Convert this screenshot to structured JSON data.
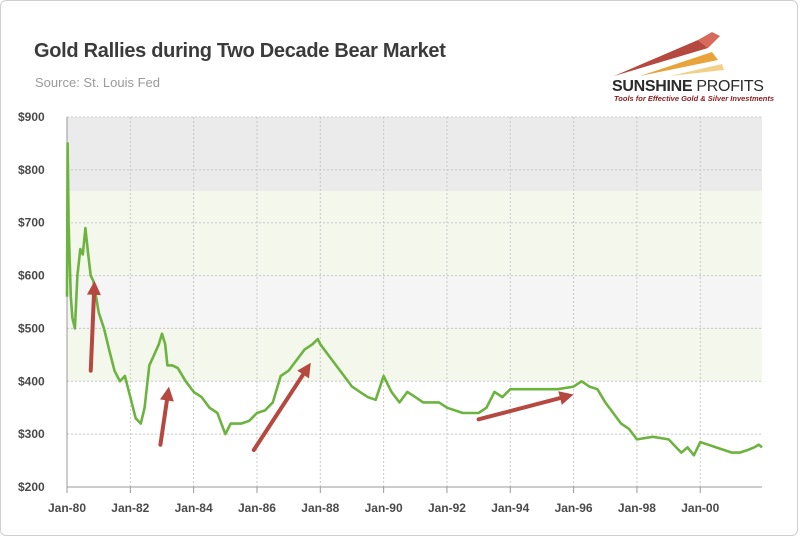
{
  "header": {
    "title": "Gold Rallies during Two Decade Bear Market",
    "source": "Source: St. Louis Fed"
  },
  "logo": {
    "name_bold": "SUNSHINE",
    "name_light": " PROFITS",
    "tagline": "Tools for Effective Gold & Silver Investments"
  },
  "colors": {
    "line": "#6db33f",
    "arrow": "#b5483f",
    "band_top": "#ebebeb",
    "band_green": "#f3f7ec",
    "band_light": "#f5f5f5",
    "grid": "#c8c8c8"
  },
  "chart_data": {
    "type": "line",
    "title": "Gold Rallies during Two Decade Bear Market",
    "xlabel": "",
    "ylabel": "",
    "ylim": [
      200,
      900
    ],
    "xlim": [
      "1980-01",
      "2001-12"
    ],
    "y_ticks": [
      "$900",
      "$800",
      "$700",
      "$600",
      "$500",
      "$400",
      "$300",
      "$200"
    ],
    "y_tick_values": [
      900,
      800,
      700,
      600,
      500,
      400,
      300,
      200
    ],
    "x_ticks": [
      "Jan-80",
      "Jan-82",
      "Jan-84",
      "Jan-86",
      "Jan-88",
      "Jan-90",
      "Jan-92",
      "Jan-94",
      "Jan-96",
      "Jan-98",
      "Jan-00"
    ],
    "x_tick_years": [
      1980,
      1982,
      1984,
      1986,
      1988,
      1990,
      1992,
      1994,
      1996,
      1998,
      2000
    ],
    "grid": true,
    "series": [
      {
        "x": [
          1980.0,
          1980.02,
          1980.05,
          1980.08,
          1980.12,
          1980.17,
          1980.25,
          1980.33,
          1980.42,
          1980.5,
          1980.58,
          1980.67,
          1980.75,
          1980.83,
          1980.92,
          1981.0,
          1981.17,
          1981.33,
          1981.5,
          1981.67,
          1981.83,
          1982.0,
          1982.17,
          1982.33,
          1982.45,
          1982.6,
          1982.75,
          1982.9,
          1983.0,
          1983.1,
          1983.17,
          1983.33,
          1983.5,
          1983.75,
          1984.0,
          1984.25,
          1984.5,
          1984.75,
          1985.0,
          1985.17,
          1985.5,
          1985.75,
          1986.0,
          1986.25,
          1986.5,
          1986.75,
          1987.0,
          1987.25,
          1987.5,
          1987.75,
          1987.92,
          1988.0,
          1988.25,
          1988.5,
          1988.75,
          1989.0,
          1989.25,
          1989.5,
          1989.75,
          1990.0,
          1990.25,
          1990.5,
          1990.75,
          1991.0,
          1991.25,
          1991.5,
          1991.75,
          1992.0,
          1992.5,
          1993.0,
          1993.25,
          1993.5,
          1993.75,
          1994.0,
          1994.5,
          1995.0,
          1995.5,
          1996.0,
          1996.25,
          1996.5,
          1996.75,
          1997.0,
          1997.25,
          1997.5,
          1997.75,
          1998.0,
          1998.5,
          1999.0,
          1999.4,
          1999.6,
          1999.8,
          2000.0,
          2000.25,
          2000.5,
          2000.75,
          2001.0,
          2001.25,
          2001.5,
          2001.7,
          2001.85,
          2001.95
        ],
        "values": [
          560,
          850,
          700,
          640,
          560,
          520,
          500,
          600,
          650,
          640,
          690,
          640,
          600,
          590,
          560,
          530,
          500,
          460,
          420,
          400,
          410,
          370,
          330,
          320,
          350,
          430,
          450,
          470,
          490,
          470,
          430,
          430,
          425,
          400,
          380,
          370,
          350,
          340,
          300,
          320,
          320,
          325,
          340,
          345,
          360,
          410,
          420,
          440,
          460,
          470,
          480,
          470,
          450,
          430,
          410,
          390,
          380,
          370,
          365,
          410,
          380,
          360,
          380,
          370,
          360,
          360,
          360,
          350,
          340,
          340,
          350,
          380,
          370,
          385,
          385,
          385,
          385,
          390,
          400,
          390,
          385,
          360,
          340,
          320,
          310,
          290,
          295,
          290,
          265,
          275,
          260,
          285,
          280,
          275,
          270,
          265,
          265,
          270,
          275,
          280,
          275
        ]
      }
    ]
  }
}
